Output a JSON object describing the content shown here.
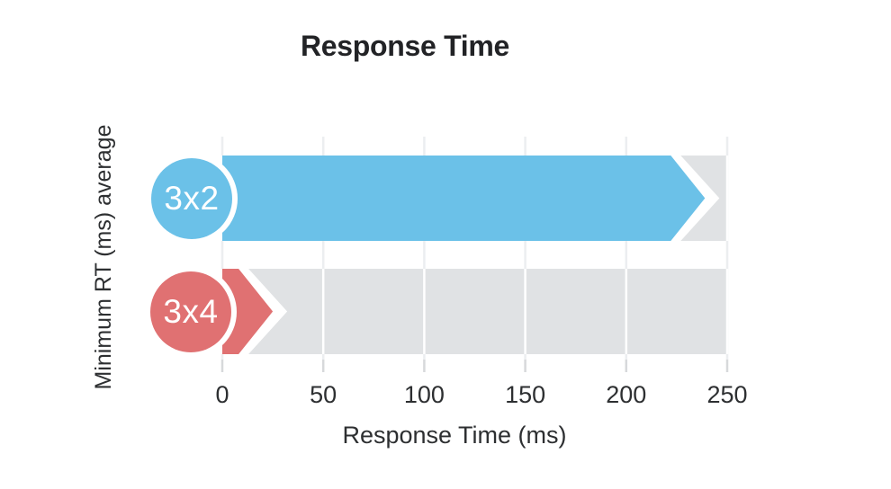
{
  "page": {
    "background": "#ffffff"
  },
  "chart_data": {
    "type": "bar",
    "orientation": "horizontal",
    "bar_style": "arrow-with-circle-badge",
    "title": "Response Time",
    "xlabel": "Response Time (ms)",
    "ylabel": "Minimum RT (ms) average",
    "categories": [
      "3x2",
      "3x4"
    ],
    "values": [
      239,
      25
    ],
    "xlim": [
      0,
      250
    ],
    "xticks": [
      0,
      50,
      100,
      150,
      200,
      250
    ],
    "grid": true,
    "legend": false,
    "track_full_value": 250,
    "colors": {
      "series": [
        "#6bc1e8",
        "#e07172"
      ],
      "track": "#e0e2e4",
      "gridline": "#eceef0",
      "tick_mark": "#d7d9db",
      "title_text": "#222326",
      "axis_text": "#2d2f31",
      "badge_text": "#ffffff",
      "outline": "#ffffff"
    }
  }
}
